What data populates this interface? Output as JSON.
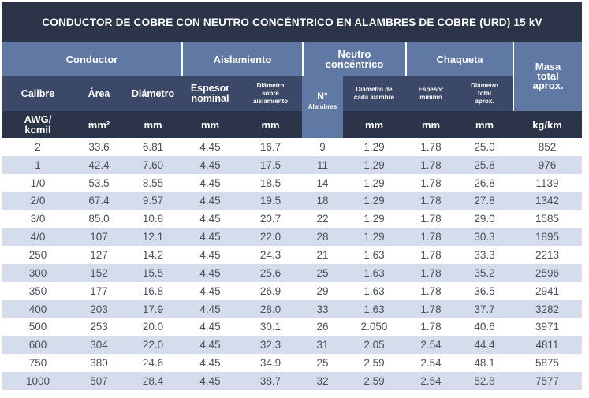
{
  "title": "CONDUCTOR DE COBRE CON NEUTRO CONCÉNTRICO EN ALAMBRES DE COBRE (URD) 15 kV",
  "groups": {
    "conductor": "Conductor",
    "aislamiento": "Aislamiento",
    "neutro": "Neutro concéntrico",
    "chaqueta": "Chaqueta",
    "masa": "Masa total aprox."
  },
  "columns": {
    "calibre": "Calibre",
    "area": "Área",
    "diametro": "Diámetro",
    "espesor_nominal": "Espesor nominal",
    "diametro_sobre_aislamiento": "Diámetro sobre aislamiento",
    "n_alambres_symbol": "N°",
    "n_alambres_label": "Alambres",
    "diametro_alambre": "Diámetro de cada alambre",
    "espesor_minimo": "Espesor mínimo",
    "diametro_total": "Diámetro total aprox."
  },
  "units": [
    "AWG/ kcmil",
    "mm²",
    "mm",
    "mm",
    "mm",
    "mm",
    "mm",
    "mm",
    "kg/km"
  ],
  "rows": [
    [
      "2",
      "33.6",
      "6.81",
      "4.45",
      "16.7",
      "9",
      "1.29",
      "1.78",
      "25.0",
      "852"
    ],
    [
      "1",
      "42.4",
      "7.60",
      "4.45",
      "17.5",
      "11",
      "1.29",
      "1.78",
      "25.8",
      "976"
    ],
    [
      "1/0",
      "53.5",
      "8.55",
      "4.45",
      "18.5",
      "14",
      "1.29",
      "1.78",
      "26.8",
      "1139"
    ],
    [
      "2/0",
      "67.4",
      "9.57",
      "4.45",
      "19.5",
      "18",
      "1.29",
      "1.78",
      "27.8",
      "1342"
    ],
    [
      "3/0",
      "85.0",
      "10.8",
      "4.45",
      "20.7",
      "22",
      "1.29",
      "1.78",
      "29.0",
      "1585"
    ],
    [
      "4/0",
      "107",
      "12.1",
      "4.45",
      "22.0",
      "28",
      "1.29",
      "1.78",
      "30.3",
      "1895"
    ],
    [
      "250",
      "127",
      "14.2",
      "4.45",
      "24.3",
      "21",
      "1.63",
      "1.78",
      "33.3",
      "2213"
    ],
    [
      "300",
      "152",
      "15.5",
      "4.45",
      "25.6",
      "25",
      "1.63",
      "1.78",
      "35.2",
      "2596"
    ],
    [
      "350",
      "177",
      "16.8",
      "4.45",
      "26.9",
      "29",
      "1.63",
      "1.78",
      "36.5",
      "2941"
    ],
    [
      "400",
      "203",
      "17.9",
      "4.45",
      "28.0",
      "33",
      "1.63",
      "1.78",
      "37.7",
      "3282"
    ],
    [
      "500",
      "253",
      "20.0",
      "4.45",
      "30.1",
      "26",
      "2.050",
      "1.78",
      "40.6",
      "3971"
    ],
    [
      "600",
      "304",
      "22.0",
      "4.45",
      "32.3",
      "31",
      "2.05",
      "2.54",
      "44.4",
      "4811"
    ],
    [
      "750",
      "380",
      "24.6",
      "4.45",
      "34.9",
      "25",
      "2.59",
      "2.54",
      "48.1",
      "5875"
    ],
    [
      "1000",
      "507",
      "28.4",
      "4.45",
      "38.7",
      "32",
      "2.59",
      "2.54",
      "52.8",
      "7577"
    ]
  ],
  "colors": {
    "title_bg": "#2b3448",
    "group_bg": "#5f78a4",
    "column_bg": "#3c4868",
    "unit_bg": "#2b3448",
    "stripe": "#d5dceb",
    "text": "#4a4f5a"
  }
}
